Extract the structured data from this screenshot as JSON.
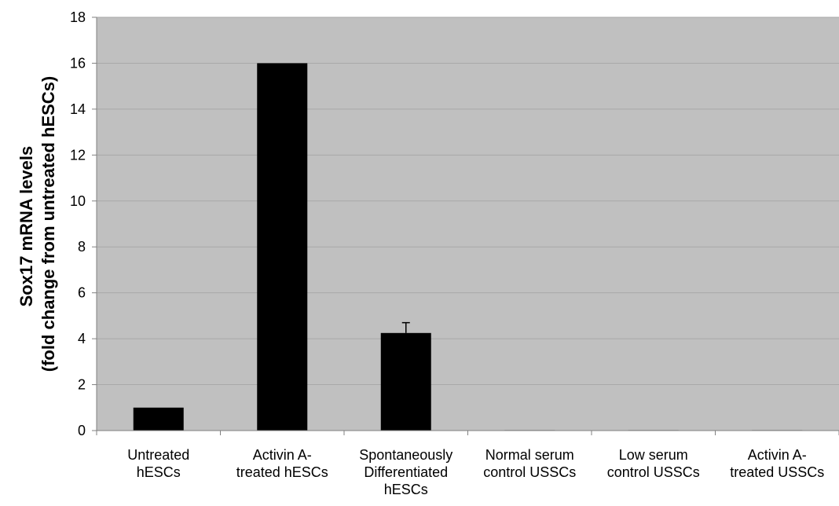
{
  "chart_data": {
    "type": "bar",
    "title": "",
    "xlabel": "",
    "ylabel_lines": [
      "Sox17 mRNA levels",
      "(fold change from untreated hESCs)"
    ],
    "ylim": [
      0,
      18
    ],
    "yticks": [
      0,
      2,
      4,
      6,
      8,
      10,
      12,
      14,
      16,
      18
    ],
    "categories": [
      [
        "Untreated",
        "hESCs"
      ],
      [
        "Activin A-",
        "treated hESCs"
      ],
      [
        "Spontaneously",
        "Differentiated",
        "hESCs"
      ],
      [
        "Normal serum",
        "control USSCs"
      ],
      [
        "Low serum",
        "control USSCs"
      ],
      [
        "Activin A-",
        "treated USSCs"
      ]
    ],
    "values": [
      1,
      16,
      4.25,
      0.02,
      0.02,
      0.02
    ],
    "error_bars": [
      null,
      null,
      0.45,
      null,
      null,
      null
    ],
    "grid": true,
    "legend": "none",
    "colors": {
      "plot_background": "#c0c0c0",
      "bar": "#000000",
      "gridline": "#a8a8a8",
      "axis": "#808080"
    }
  }
}
